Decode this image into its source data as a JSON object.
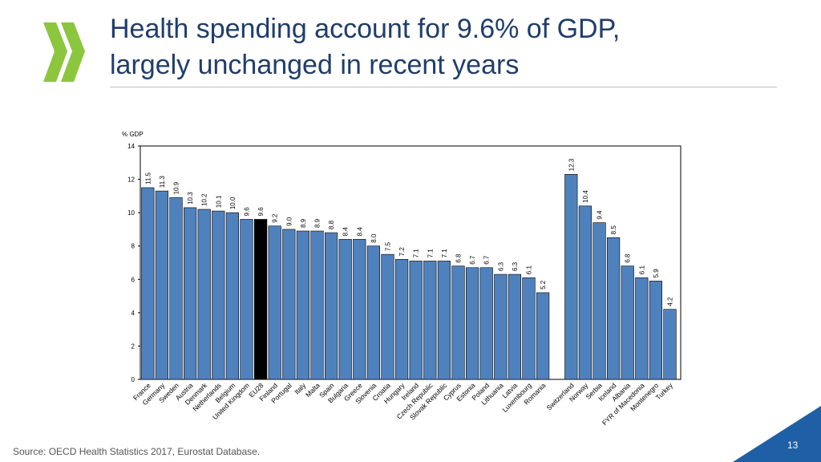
{
  "slide": {
    "title_line1": "Health spending account for 9.6% of GDP,",
    "title_line2": "largely unchanged in recent years",
    "source": "Source: OECD Health Statistics 2017, Eurostat Database.",
    "page_number": "13"
  },
  "colors": {
    "bar": "#4f81bd",
    "highlight": "#000000",
    "logo": "#8cc63f",
    "title": "#1f3d6d",
    "corner": "#1f5fa5"
  },
  "chart_data": {
    "type": "bar",
    "title": "",
    "ylabel": "% GDP",
    "ylim": [
      0,
      14
    ],
    "yticks": [
      0,
      2,
      4,
      6,
      8,
      10,
      12,
      14
    ],
    "highlight": "EU28",
    "groups": [
      {
        "categories": [
          "France",
          "Germany",
          "Sweden",
          "Austria",
          "Denmark",
          "Netherlands",
          "Belgium",
          "United Kingdom",
          "EU28",
          "Finland",
          "Portugal",
          "Italy",
          "Malta",
          "Spain",
          "Bulgaria",
          "Greece",
          "Slovenia",
          "Croatia",
          "Hungary",
          "Ireland",
          "Czech Republic",
          "Slovak Republic",
          "Cyprus",
          "Estonia",
          "Poland",
          "Lithuania",
          "Latvia",
          "Luxembourg",
          "Romania"
        ],
        "values": [
          11.5,
          11.3,
          10.9,
          10.3,
          10.2,
          10.1,
          10.0,
          9.6,
          9.6,
          9.2,
          9.0,
          8.9,
          8.9,
          8.8,
          8.4,
          8.4,
          8.0,
          7.5,
          7.2,
          7.1,
          7.1,
          7.1,
          6.8,
          6.7,
          6.7,
          6.3,
          6.3,
          6.1,
          5.2
        ],
        "labels": [
          "11.5",
          "11.3",
          "10.9",
          "10.3",
          "10.2",
          "10.1",
          "10.0",
          "9.6",
          "9.6",
          "9.2",
          "9.0",
          "8.9",
          "8.9",
          "8.8",
          "8.4",
          "8.4",
          "8.0",
          "7.5",
          "7.2",
          "7.1",
          "7.1",
          "7.1",
          "6.8",
          "6.7",
          "6.7",
          "6.3",
          "6.3",
          "6.1",
          "5.2"
        ]
      },
      {
        "categories": [
          "Switzerland",
          "Norway",
          "Serbia",
          "Iceland",
          "Albania",
          "FYR of Macedonia",
          "Montenegro",
          "Turkey"
        ],
        "values": [
          12.3,
          10.4,
          9.4,
          8.5,
          6.8,
          6.1,
          5.9,
          4.2
        ],
        "labels": [
          "12.3",
          "10.4",
          "9.4",
          "8.5",
          "6.8",
          "6.1",
          "5.9",
          "4.2"
        ]
      }
    ]
  }
}
